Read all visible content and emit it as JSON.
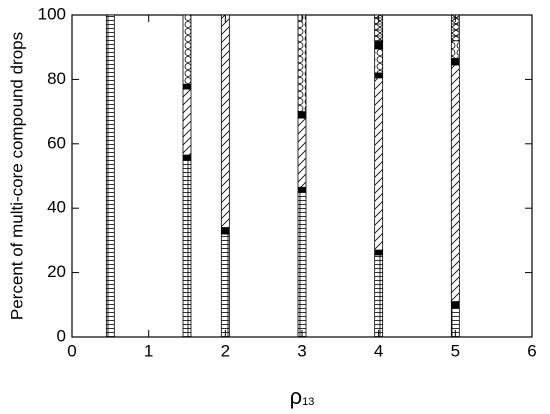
{
  "chart_data": {
    "type": "bar",
    "stacked": true,
    "xlabel": "ρ",
    "xlabel_sub": "13",
    "ylabel": "Percent of multi-core compound drops",
    "x": [
      0.5,
      1.5,
      2,
      3,
      4,
      5
    ],
    "series": [
      {
        "pattern": "hlines",
        "color": "#000000",
        "values": [
          100,
          55,
          32,
          45,
          25.5,
          9
        ]
      },
      {
        "pattern": "solid",
        "color": "#000000",
        "values": [
          0,
          1.5,
          2,
          1.5,
          1.5,
          2
        ]
      },
      {
        "pattern": "hatch",
        "color": "#000000",
        "values": [
          0,
          20.5,
          66,
          21.5,
          53.5,
          73.5
        ]
      },
      {
        "pattern": "solid",
        "color": "#000000",
        "values": [
          0,
          1.5,
          0,
          2,
          1.5,
          2
        ]
      },
      {
        "pattern": "circles",
        "color": "#000000",
        "values": [
          0,
          21.5,
          0,
          30,
          7.5,
          5.5
        ]
      },
      {
        "pattern": "solid",
        "color": "#000000",
        "values": [
          0,
          0,
          0,
          0,
          2.5,
          0
        ]
      },
      {
        "pattern": "triangles",
        "color": "#000000",
        "values": [
          0,
          0,
          0,
          0,
          8,
          8
        ]
      }
    ],
    "xlim": [
      0,
      6
    ],
    "xticks": [
      0,
      1,
      2,
      3,
      4,
      5,
      6
    ],
    "ylim": [
      0,
      100
    ],
    "yticks": [
      0,
      20,
      40,
      60,
      80,
      100
    ]
  }
}
